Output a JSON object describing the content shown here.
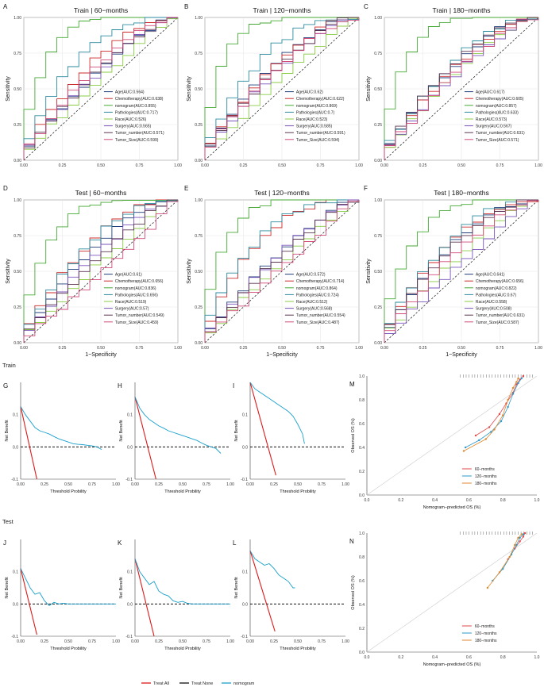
{
  "section_labels": {
    "train": "Train",
    "test": "Test"
  },
  "colors": {
    "Age": "#1f3d7a",
    "Chemotherapy": "#cc2a2a",
    "nomogram": "#44aa33",
    "Pathologies": "#2a8a9e",
    "Race": "#88cc44",
    "Surgery": "#7a55bb",
    "Tumor_number": "#5a3550",
    "Tumor_Size": "#d04a78",
    "treat_all": "#dd1a1a",
    "treat_none": "#111111",
    "dca_nomogram": "#1aa0cc",
    "cal60": "#e04a4a",
    "cal120": "#2a99cc",
    "cal180": "#e08a30"
  },
  "chart_data": [
    {
      "id": "A",
      "type": "line",
      "panel_label": "A",
      "title": "Train | 60−months",
      "xlabel": "",
      "ylabel": "Sensitivity",
      "xlim": [
        0,
        1
      ],
      "ylim": [
        0,
        1
      ],
      "x_ticks": [
        "0.00",
        "0.25",
        "0.50",
        "0.75",
        "1.00"
      ],
      "y_ticks": [
        "0.00",
        "0.25",
        "0.50",
        "0.75",
        "1.00"
      ],
      "legend": [
        "Age(AUC:0.564)",
        "Chemotherapy(AUC:0.638)",
        "nomogram(AUC:0.855)",
        "Pathologies(AUC:0.717)",
        "Race(AUC:0.526)",
        "Surgery(AUC:0.565)",
        "Tumor_number(AUC:0.571)",
        "Tumor_Size(AUC:0.599)"
      ]
    },
    {
      "id": "B",
      "type": "line",
      "panel_label": "B",
      "title": "Train | 120−months",
      "xlabel": "",
      "ylabel": "Sensitivity",
      "xlim": [
        0,
        1
      ],
      "ylim": [
        0,
        1
      ],
      "x_ticks": [
        "0.00",
        "0.25",
        "0.50",
        "0.75",
        "1.00"
      ],
      "y_ticks": [
        "0.00",
        "0.25",
        "0.50",
        "0.75",
        "1.00"
      ],
      "legend": [
        "Age(AUC:0.62)",
        "Chemotherapy(AUC:0.622)",
        "nomogram(AUC:0.869)",
        "Pathologies(AUC:0.7)",
        "Race(AUC:0.523)",
        "Surgery(AUC:0.585)",
        "Tumor_number(AUC:0.591)",
        "Tumor_Size(AUC:0.594)"
      ]
    },
    {
      "id": "C",
      "type": "line",
      "panel_label": "C",
      "title": "Train | 180−months",
      "xlabel": "",
      "ylabel": "Sensitivity",
      "xlim": [
        0,
        1
      ],
      "ylim": [
        0,
        1
      ],
      "x_ticks": [
        "0.00",
        "0.25",
        "0.50",
        "0.75",
        "1.00"
      ],
      "y_ticks": [
        "0.00",
        "0.25",
        "0.50",
        "0.75",
        "1.00"
      ],
      "legend": [
        "Age(AUC:0.617)",
        "Chemotherapy(AUC:0.605)",
        "nomogram(AUC:0.857)",
        "Pathologies(AUC:0.633)",
        "Race(AUC:0.573)",
        "Surgery(AUC:0.567)",
        "Tumor_number(AUC:0.631)",
        "Tumor_Size(AUC:0.571)"
      ]
    },
    {
      "id": "D",
      "type": "line",
      "panel_label": "D",
      "title": "Test | 60−months",
      "xlabel": "1−Specificity",
      "ylabel": "Sensitivity",
      "xlim": [
        0,
        1
      ],
      "ylim": [
        0,
        1
      ],
      "x_ticks": [
        "0.00",
        "0.25",
        "0.50",
        "0.75",
        "1.00"
      ],
      "y_ticks": [
        "0.00",
        "0.25",
        "0.50",
        "0.75",
        "1.00"
      ],
      "legend": [
        "Age(AUC:0.61)",
        "Chemotherapy(AUC:0.656)",
        "nomogram(AUC:0.836)",
        "Pathologies(AUC:0.656)",
        "Race(AUC:0.519)",
        "Surgery(AUC:0.57)",
        "Tumor_number(AUC:0.549)",
        "Tumor_Size(AUC:0.459)"
      ]
    },
    {
      "id": "E",
      "type": "line",
      "panel_label": "E",
      "title": "Test | 120−months",
      "xlabel": "1−Specificity",
      "ylabel": "Sensitivity",
      "xlim": [
        0,
        1
      ],
      "ylim": [
        0,
        1
      ],
      "x_ticks": [
        "0.00",
        "0.25",
        "0.50",
        "0.75",
        "1.00"
      ],
      "y_ticks": [
        "0.00",
        "0.25",
        "0.50",
        "0.75",
        "1.00"
      ],
      "legend": [
        "Age(AUC:0.572)",
        "Chemotherapy(AUC:0.714)",
        "nomogram(AUC:0.864)",
        "Pathologies(AUC:0.724)",
        "Race(AUC:0.512)",
        "Surgery(AUC:0.568)",
        "Tumor_number(AUC:0.554)",
        "Tumor_Size(AUC:0.487)"
      ]
    },
    {
      "id": "F",
      "type": "line",
      "panel_label": "F",
      "title": "Test | 180−months",
      "xlabel": "1−Specificity",
      "ylabel": "Sensitivity",
      "xlim": [
        0,
        1
      ],
      "ylim": [
        0,
        1
      ],
      "x_ticks": [
        "0.00",
        "0.25",
        "0.50",
        "0.75",
        "1.00"
      ],
      "y_ticks": [
        "0.00",
        "0.25",
        "0.50",
        "0.75",
        "1.00"
      ],
      "legend": [
        "Age(AUC:0.641)",
        "Chemotherapy(AUC:0.656)",
        "nomogram(AUC:0.822)",
        "Pathologies(AUC:0.67)",
        "Race(AUC:0.558)",
        "Surgery(AUC:0.508)",
        "Tumor_number(AUC:0.631)",
        "Tumor_Size(AUC:0.587)"
      ]
    },
    {
      "id": "G",
      "type": "line",
      "panel_label": "G",
      "title": "",
      "xlabel": "Threshold Probility",
      "ylabel": "Net Benefit",
      "xlim": [
        0,
        1
      ],
      "ylim": [
        -0.1,
        0.2
      ],
      "x_ticks": [
        "0.00",
        "0.25",
        "0.50",
        "0.75",
        "1.00"
      ],
      "y_ticks": [
        "-0.1",
        "0.0",
        "0.1"
      ],
      "treat_all": [
        [
          0,
          0.125
        ],
        [
          0.17,
          -0.1
        ]
      ],
      "nomogram": [
        [
          0,
          0.125
        ],
        [
          0.05,
          0.1
        ],
        [
          0.1,
          0.08
        ],
        [
          0.15,
          0.06
        ],
        [
          0.2,
          0.05
        ],
        [
          0.25,
          0.045
        ],
        [
          0.3,
          0.04
        ],
        [
          0.35,
          0.032
        ],
        [
          0.4,
          0.025
        ],
        [
          0.45,
          0.02
        ],
        [
          0.5,
          0.015
        ],
        [
          0.55,
          0.01
        ],
        [
          0.6,
          0.008
        ],
        [
          0.65,
          0.007
        ],
        [
          0.7,
          0.005
        ],
        [
          0.75,
          0.003
        ],
        [
          0.8,
          0
        ],
        [
          0.85,
          -0.008
        ]
      ]
    },
    {
      "id": "H",
      "type": "line",
      "panel_label": "H",
      "title": "",
      "xlabel": "Threshold Probility",
      "ylabel": "Net Benefit",
      "xlim": [
        0,
        1
      ],
      "ylim": [
        -0.1,
        0.2
      ],
      "x_ticks": [
        "0.00",
        "0.25",
        "0.50",
        "0.75",
        "1.00"
      ],
      "y_ticks": [
        "-0.1",
        "0.0",
        "0.1"
      ],
      "treat_all": [
        [
          0,
          0.155
        ],
        [
          0.22,
          -0.1
        ]
      ],
      "nomogram": [
        [
          0,
          0.155
        ],
        [
          0.05,
          0.12
        ],
        [
          0.1,
          0.1
        ],
        [
          0.15,
          0.085
        ],
        [
          0.2,
          0.075
        ],
        [
          0.25,
          0.065
        ],
        [
          0.3,
          0.058
        ],
        [
          0.35,
          0.05
        ],
        [
          0.4,
          0.045
        ],
        [
          0.45,
          0.04
        ],
        [
          0.5,
          0.035
        ],
        [
          0.55,
          0.03
        ],
        [
          0.6,
          0.025
        ],
        [
          0.65,
          0.02
        ],
        [
          0.7,
          0.012
        ],
        [
          0.75,
          0.005
        ],
        [
          0.8,
          0
        ],
        [
          0.85,
          -0.005
        ],
        [
          0.9,
          -0.02
        ]
      ]
    },
    {
      "id": "I",
      "type": "line",
      "panel_label": "I",
      "title": "",
      "xlabel": "Threshold Probility",
      "ylabel": "Net Benefit",
      "xlim": [
        0,
        1
      ],
      "ylim": [
        -0.1,
        0.2
      ],
      "x_ticks": [
        "0.00",
        "0.25",
        "0.50",
        "0.75",
        "1.00"
      ],
      "y_ticks": [
        "-0.1",
        "0.0",
        "0.1"
      ],
      "treat_all": [
        [
          0,
          0.2
        ],
        [
          0.27,
          -0.088
        ]
      ],
      "nomogram": [
        [
          0,
          0.2
        ],
        [
          0.05,
          0.18
        ],
        [
          0.1,
          0.17
        ],
        [
          0.15,
          0.16
        ],
        [
          0.2,
          0.15
        ],
        [
          0.25,
          0.14
        ],
        [
          0.3,
          0.13
        ],
        [
          0.35,
          0.12
        ],
        [
          0.4,
          0.11
        ],
        [
          0.45,
          0.095
        ],
        [
          0.5,
          0.07
        ],
        [
          0.55,
          0.04
        ],
        [
          0.57,
          0.01
        ]
      ]
    },
    {
      "id": "J",
      "type": "line",
      "panel_label": "J",
      "title": "",
      "xlabel": "Threshold Probility",
      "ylabel": "Net Benefit",
      "xlim": [
        0,
        1
      ],
      "ylim": [
        -0.1,
        0.2
      ],
      "x_ticks": [
        "0.00",
        "0.25",
        "0.50",
        "0.75",
        "1.00"
      ],
      "y_ticks": [
        "-0.1",
        "0.0",
        "0.1"
      ],
      "treat_all": [
        [
          0,
          0.11
        ],
        [
          0.17,
          -0.095
        ]
      ],
      "nomogram": [
        [
          0,
          0.11
        ],
        [
          0.05,
          0.08
        ],
        [
          0.1,
          0.05
        ],
        [
          0.15,
          0.03
        ],
        [
          0.2,
          0.035
        ],
        [
          0.25,
          0.01
        ],
        [
          0.3,
          -0.005
        ],
        [
          0.35,
          0.005
        ],
        [
          0.4,
          0
        ],
        [
          0.45,
          0.002
        ],
        [
          0.5,
          0
        ],
        [
          0.55,
          0
        ],
        [
          0.6,
          0
        ],
        [
          0.65,
          0
        ],
        [
          0.7,
          0
        ],
        [
          0.75,
          0
        ],
        [
          0.8,
          0
        ],
        [
          0.85,
          0
        ],
        [
          0.9,
          0
        ],
        [
          0.95,
          0
        ],
        [
          1.0,
          0
        ]
      ]
    },
    {
      "id": "K",
      "type": "line",
      "panel_label": "K",
      "title": "",
      "xlabel": "Threshold Probility",
      "ylabel": "Net Benefit",
      "xlim": [
        0,
        1
      ],
      "ylim": [
        -0.1,
        0.2
      ],
      "x_ticks": [
        "0.00",
        "0.25",
        "0.50",
        "0.75",
        "1.00"
      ],
      "y_ticks": [
        "-0.1",
        "0.0",
        "0.1"
      ],
      "treat_all": [
        [
          0,
          0.14
        ],
        [
          0.2,
          -0.1
        ]
      ],
      "nomogram": [
        [
          0,
          0.14
        ],
        [
          0.05,
          0.1
        ],
        [
          0.1,
          0.08
        ],
        [
          0.15,
          0.06
        ],
        [
          0.2,
          0.07
        ],
        [
          0.25,
          0.04
        ],
        [
          0.3,
          0.03
        ],
        [
          0.35,
          0.025
        ],
        [
          0.4,
          0.01
        ],
        [
          0.45,
          0.005
        ],
        [
          0.5,
          0.008
        ],
        [
          0.55,
          0.002
        ],
        [
          0.6,
          0
        ],
        [
          0.65,
          0
        ],
        [
          0.7,
          0
        ],
        [
          0.75,
          0
        ],
        [
          0.8,
          0
        ],
        [
          0.85,
          0
        ],
        [
          0.9,
          0
        ],
        [
          0.95,
          0
        ],
        [
          1.0,
          0
        ]
      ]
    },
    {
      "id": "L",
      "type": "line",
      "panel_label": "L",
      "title": "",
      "xlabel": "Threshold Probility",
      "ylabel": "Net Benefit",
      "xlim": [
        0,
        1
      ],
      "ylim": [
        -0.1,
        0.2
      ],
      "x_ticks": [
        "0.00",
        "0.25",
        "0.50",
        "0.75",
        "1.00"
      ],
      "y_ticks": [
        "-0.1",
        "0.0",
        "0.1"
      ],
      "treat_all": [
        [
          0,
          0.165
        ],
        [
          0.26,
          -0.085
        ]
      ],
      "nomogram": [
        [
          0,
          0.165
        ],
        [
          0.05,
          0.14
        ],
        [
          0.1,
          0.13
        ],
        [
          0.15,
          0.12
        ],
        [
          0.2,
          0.125
        ],
        [
          0.25,
          0.11
        ],
        [
          0.3,
          0.09
        ],
        [
          0.35,
          0.08
        ],
        [
          0.4,
          0.07
        ],
        [
          0.45,
          0.05
        ],
        [
          0.47,
          0.05
        ]
      ]
    },
    {
      "id": "M",
      "type": "line",
      "panel_label": "M",
      "title": "",
      "xlabel": "Nomogram−predicted OS (%)",
      "ylabel": "Observed OS (%)",
      "xlim": [
        0,
        1
      ],
      "ylim": [
        0,
        1
      ],
      "x_ticks": [
        "0.0",
        "0.2",
        "0.4",
        "0.6",
        "0.8",
        "1.0"
      ],
      "y_ticks": [
        "0.0",
        "0.2",
        "0.4",
        "0.6",
        "0.8",
        "1.0"
      ],
      "legend": [
        "60−months",
        "120−months",
        "180−months"
      ],
      "series": [
        {
          "name": "60−months",
          "points": [
            [
              0.64,
              0.5
            ],
            [
              0.72,
              0.57
            ],
            [
              0.78,
              0.68
            ],
            [
              0.82,
              0.77
            ],
            [
              0.86,
              0.86
            ],
            [
              0.88,
              0.93
            ],
            [
              0.9,
              0.97
            ],
            [
              0.92,
              1.0
            ]
          ]
        },
        {
          "name": "120−months",
          "points": [
            [
              0.58,
              0.4
            ],
            [
              0.66,
              0.46
            ],
            [
              0.73,
              0.53
            ],
            [
              0.79,
              0.62
            ],
            [
              0.83,
              0.74
            ],
            [
              0.86,
              0.85
            ],
            [
              0.89,
              0.94
            ],
            [
              0.91,
              0.98
            ]
          ]
        },
        {
          "name": "180−months",
          "points": [
            [
              0.57,
              0.37
            ],
            [
              0.7,
              0.47
            ],
            [
              0.75,
              0.55
            ],
            [
              0.8,
              0.67
            ],
            [
              0.83,
              0.8
            ],
            [
              0.86,
              0.9
            ],
            [
              0.88,
              0.95
            ],
            [
              0.89,
              0.98
            ]
          ]
        }
      ]
    },
    {
      "id": "N",
      "type": "line",
      "panel_label": "N",
      "title": "",
      "xlabel": "Nomogram−predicted OS (%)",
      "ylabel": "Observed OS (%)",
      "xlim": [
        0,
        1
      ],
      "ylim": [
        0,
        1
      ],
      "x_ticks": [
        "0.0",
        "0.2",
        "0.4",
        "0.6",
        "0.8",
        "1.0"
      ],
      "y_ticks": [
        "0.0",
        "0.2",
        "0.4",
        "0.6",
        "0.8",
        "1.0"
      ],
      "legend": [
        "60−months",
        "120−months",
        "180−months"
      ],
      "series": [
        {
          "name": "60−months",
          "points": [
            [
              0.83,
              0.78
            ],
            [
              0.87,
              0.87
            ],
            [
              0.9,
              0.93
            ],
            [
              0.92,
              0.97
            ],
            [
              0.93,
              1.0
            ]
          ]
        },
        {
          "name": "120−months",
          "points": [
            [
              0.74,
              0.6
            ],
            [
              0.8,
              0.7
            ],
            [
              0.85,
              0.82
            ],
            [
              0.88,
              0.9
            ],
            [
              0.9,
              0.96
            ],
            [
              0.92,
              0.99
            ]
          ]
        },
        {
          "name": "180−months",
          "points": [
            [
              0.71,
              0.54
            ],
            [
              0.78,
              0.67
            ],
            [
              0.84,
              0.8
            ],
            [
              0.87,
              0.9
            ],
            [
              0.89,
              0.96
            ],
            [
              0.91,
              0.99
            ]
          ]
        }
      ]
    }
  ],
  "dca_legend": [
    "Treat All",
    "Treat None",
    "nomogram"
  ]
}
